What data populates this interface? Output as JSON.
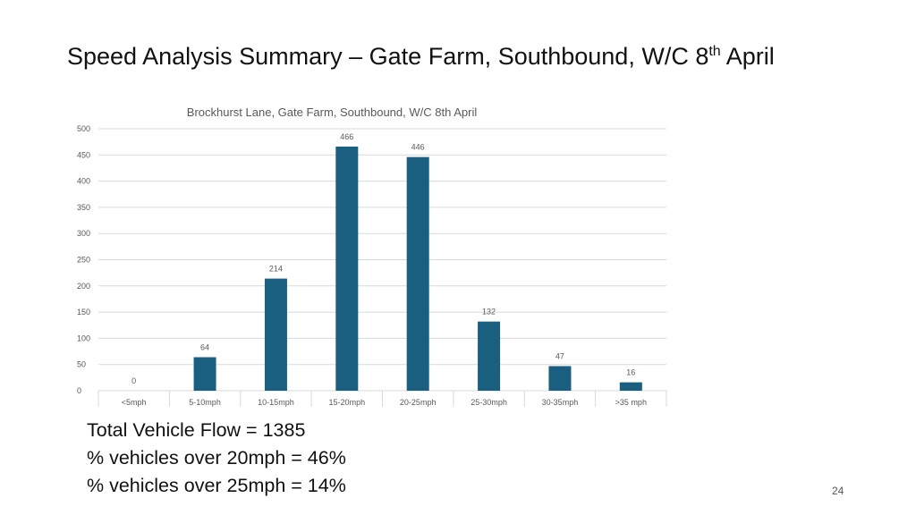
{
  "slide": {
    "title_main": "Speed Analysis Summary – Gate Farm, Southbound, W/C 8",
    "title_sup": "th",
    "title_end": " April",
    "page_number": "24"
  },
  "summary": {
    "lines": [
      "Total Vehicle Flow = 1385",
      "% vehicles over 20mph = 46%",
      "% vehicles over 25mph = 14%"
    ]
  },
  "chart_data": {
    "type": "bar",
    "title": "Brockhurst Lane, Gate Farm,  Southbound, W/C 8th April",
    "categories": [
      "<5mph",
      "5-10mph",
      "10-15mph",
      "15-20mph",
      "20-25mph",
      "25-30mph",
      "30-35mph",
      ">35 mph"
    ],
    "values": [
      0,
      64,
      214,
      466,
      446,
      132,
      47,
      16
    ],
    "yticks": [
      "0",
      "50",
      "100",
      "150",
      "200",
      "250",
      "300",
      "350",
      "400",
      "450",
      "500"
    ],
    "ylim": [
      0,
      500
    ],
    "grid": true,
    "data_labels": true,
    "xlabel": "",
    "ylabel": "",
    "colors": {
      "bar": "#1a5f80",
      "grid": "#d9d9d9",
      "text": "#595959"
    }
  }
}
